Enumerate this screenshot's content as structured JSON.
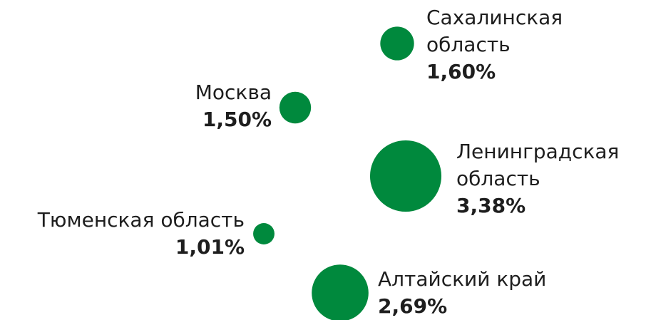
{
  "chart_data": {
    "type": "bubble",
    "categories": [
      "Сахалинская область",
      "Москва",
      "Ленинградская область",
      "Тюменская область",
      "Алтайский край"
    ],
    "values": [
      1.6,
      1.5,
      3.38,
      1.01,
      2.69
    ],
    "value_labels": [
      "1,60%",
      "1,50%",
      "3,38%",
      "1,01%",
      "2,69%"
    ],
    "color": "#00893d"
  }
}
